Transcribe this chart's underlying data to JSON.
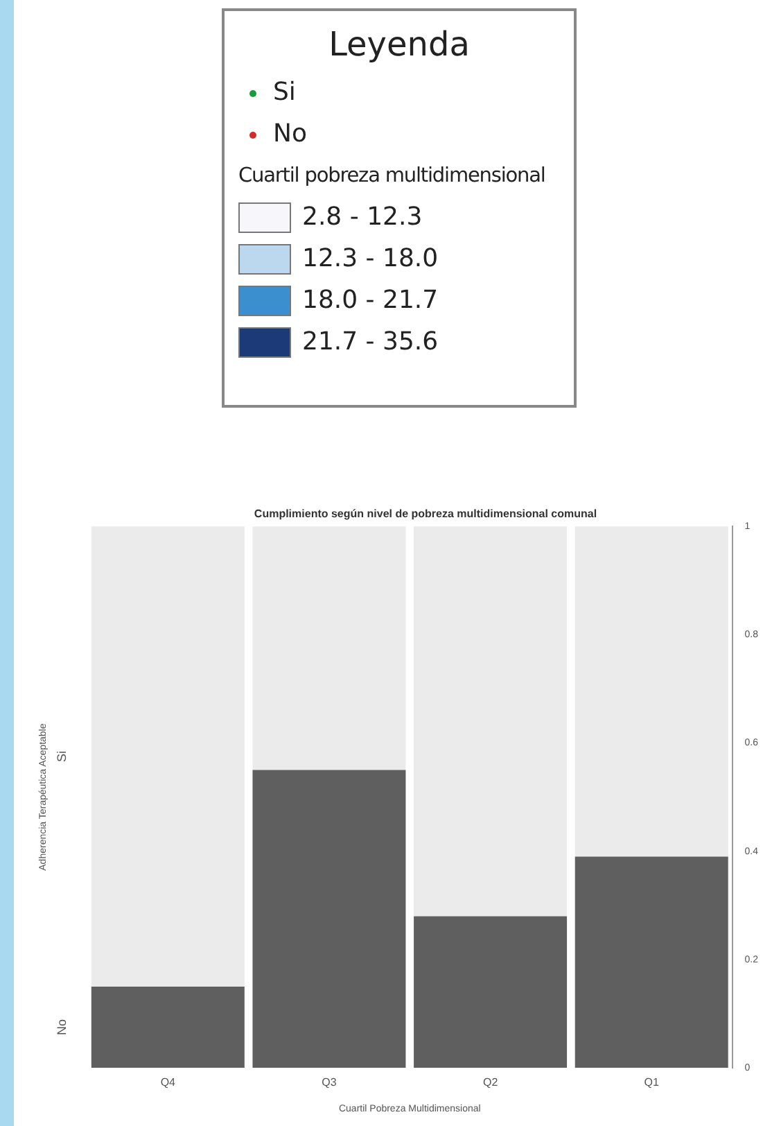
{
  "chart_data": {
    "type": "bar",
    "title": "Cumplimiento según nivel de pobreza multidimensional comunal",
    "xlabel": "Cuartil Pobreza Multidimensional",
    "ylabel": "Adherencia Terapéutica Aceptable",
    "categories": [
      "Q4",
      "Q3",
      "Q2",
      "Q1"
    ],
    "stacked": true,
    "series": [
      {
        "name": "No",
        "color": "#5f5f5f",
        "values": [
          0.15,
          0.55,
          0.28,
          0.39
        ]
      },
      {
        "name": "Si",
        "color": "#ebebeb",
        "values": [
          0.85,
          0.45,
          0.72,
          0.61
        ]
      }
    ],
    "ylim": [
      0,
      1
    ],
    "yticks": [
      0,
      0.2,
      0.4,
      0.6,
      0.8,
      1
    ],
    "grid": false,
    "legend": false,
    "annotations": [
      "Leyenda",
      "Si",
      "No",
      "Cuartil pobreza multidimensional",
      "2.8 - 12.3",
      "12.3 - 18.0",
      "18.0 - 21.7",
      "21.7 - 35.6"
    ]
  }
}
